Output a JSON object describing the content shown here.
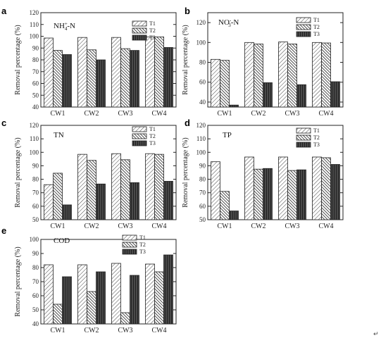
{
  "corner_mark": "↵",
  "chart_data": [
    {
      "letter": "a",
      "type": "bar",
      "title": "NH4+-N",
      "title_main": "NH",
      "title_sub": "4",
      "title_sup": "+",
      "title_rest": "-N",
      "ylabel": "Removal percentage (%)",
      "ylim": [
        40,
        120
      ],
      "yticks": [
        40,
        50,
        60,
        70,
        80,
        90,
        100,
        110,
        120
      ],
      "categories": [
        "CW1",
        "CW2",
        "CW3",
        "CW4"
      ],
      "series": [
        {
          "name": "T1",
          "values": [
            98.5,
            99,
            99,
            99.5
          ]
        },
        {
          "name": "T2",
          "values": [
            88,
            88.5,
            89.5,
            99.5
          ]
        },
        {
          "name": "T3",
          "values": [
            84.5,
            80,
            88,
            90.5
          ]
        }
      ]
    },
    {
      "letter": "b",
      "type": "bar",
      "title": "NO3--N",
      "title_main": "NO",
      "title_sub": "3",
      "title_sup": "-",
      "title_rest": "-N",
      "ylabel": "Removal percentage (%)",
      "ylim": [
        35,
        130
      ],
      "yticks": [
        40,
        60,
        80,
        100,
        120
      ],
      "categories": [
        "CW1",
        "CW2",
        "CW3",
        "CW4"
      ],
      "series": [
        {
          "name": "T1",
          "values": [
            83,
            100,
            100.5,
            100
          ]
        },
        {
          "name": "T2",
          "values": [
            82,
            98.5,
            98.5,
            99.5
          ]
        },
        {
          "name": "T3",
          "values": [
            37,
            59.5,
            57.5,
            60.5
          ]
        }
      ]
    },
    {
      "letter": "c",
      "type": "bar",
      "title": "TN",
      "ylabel": "Removal percentage (%)",
      "ylim": [
        50,
        120
      ],
      "yticks": [
        50,
        60,
        70,
        80,
        90,
        100,
        110,
        120
      ],
      "categories": [
        "CW1",
        "CW2",
        "CW3",
        "CW4"
      ],
      "series": [
        {
          "name": "T1",
          "values": [
            76,
            98.5,
            99,
            99
          ]
        },
        {
          "name": "T2",
          "values": [
            84.5,
            94,
            94.5,
            98.5
          ]
        },
        {
          "name": "T3",
          "values": [
            61,
            76.5,
            77.5,
            78.5
          ]
        }
      ]
    },
    {
      "letter": "d",
      "type": "bar",
      "title": "TP",
      "ylabel": "Removal percentage (%)",
      "ylim": [
        50,
        120
      ],
      "yticks": [
        50,
        60,
        70,
        80,
        90,
        100,
        110,
        120
      ],
      "categories": [
        "CW1",
        "CW2",
        "CW3",
        "CW4"
      ],
      "series": [
        {
          "name": "T1",
          "values": [
            93,
            96.5,
            96.5,
            96.5
          ]
        },
        {
          "name": "T2",
          "values": [
            71,
            87.5,
            86.5,
            96
          ]
        },
        {
          "name": "T3",
          "values": [
            56.5,
            88,
            87,
            91
          ]
        }
      ]
    },
    {
      "letter": "e",
      "type": "bar",
      "title": "COD",
      "ylabel": "Removal percentage (%)",
      "ylim": [
        40,
        100
      ],
      "yticks": [
        40,
        50,
        60,
        70,
        80,
        90,
        100
      ],
      "categories": [
        "CW1",
        "CW2",
        "CW3",
        "CW4"
      ],
      "series": [
        {
          "name": "T1",
          "values": [
            82,
            82,
            83,
            82.5
          ]
        },
        {
          "name": "T2",
          "values": [
            54,
            63,
            48,
            77
          ]
        },
        {
          "name": "T3",
          "values": [
            73.5,
            77,
            74.5,
            89
          ]
        }
      ]
    }
  ]
}
